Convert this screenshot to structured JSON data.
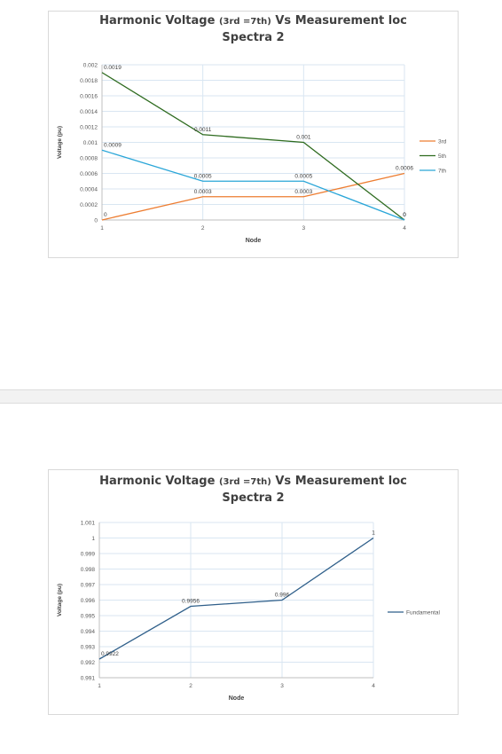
{
  "charts": [
    {
      "title_main": "Harmonic Voltage ",
      "title_paren": "(3rd =7th)",
      "title_tail": " Vs Measurement loc",
      "title_line2": "Spectra 2",
      "xlabel": "Node",
      "ylabel": "Voltage (pu)"
    },
    {
      "title_main": "Harmonic Voltage ",
      "title_paren": "(3rd =7th)",
      "title_tail": " Vs Measurement loc",
      "title_line2": "Spectra 2",
      "xlabel": "Node",
      "ylabel": "Voltage (pu)"
    }
  ],
  "chart_data": [
    {
      "type": "line",
      "title": "Harmonic Voltage (3rd =7th) Vs Measurement loc Spectra 2",
      "xlabel": "Node",
      "ylabel": "Voltage (pu)",
      "x": [
        1,
        2,
        3,
        4
      ],
      "x_tick_labels": [
        "1",
        "2",
        "3",
        "4"
      ],
      "ylim": [
        0,
        0.002
      ],
      "y_ticks": [
        0,
        0.0002,
        0.0004,
        0.0006,
        0.0008,
        0.001,
        0.0012,
        0.0014,
        0.0016,
        0.0018,
        0.002
      ],
      "y_tick_labels": [
        "0",
        "0.0002",
        "0.0004",
        "0.0006",
        "0.0008",
        "0.001",
        "0.0012",
        "0.0014",
        "0.0016",
        "0.0018",
        "0.002"
      ],
      "grid": true,
      "legend_position": "right",
      "series": [
        {
          "name": "3rd",
          "color": "#ed7d31",
          "values": [
            0,
            0.0003,
            0.0003,
            0.0006
          ],
          "labels": [
            "0",
            "0.0003",
            "0.0003",
            "0.0006"
          ]
        },
        {
          "name": "5th",
          "color": "#2e6b1f",
          "values": [
            0.0019,
            0.0011,
            0.001,
            0
          ],
          "labels": [
            "0.0019",
            "0.0011",
            "0.001",
            "0"
          ]
        },
        {
          "name": "7th",
          "color": "#2aa6d8",
          "values": [
            0.0009,
            0.0005,
            0.0005,
            0
          ],
          "labels": [
            "0.0009",
            "0.0005",
            "0.0005",
            "0"
          ]
        }
      ]
    },
    {
      "type": "line",
      "title": "Harmonic Voltage (3rd =7th) Vs Measurement loc Spectra 2",
      "xlabel": "Node",
      "ylabel": "Voltage (pu)",
      "x": [
        1,
        2,
        3,
        4
      ],
      "x_tick_labels": [
        "1",
        "2",
        "3",
        "4"
      ],
      "ylim": [
        0.991,
        1.001
      ],
      "y_ticks": [
        0.991,
        0.992,
        0.993,
        0.994,
        0.995,
        0.996,
        0.997,
        0.998,
        0.999,
        1,
        1.001
      ],
      "y_tick_labels": [
        "0.991",
        "0.992",
        "0.993",
        "0.994",
        "0.995",
        "0.996",
        "0.997",
        "0.998",
        "0.999",
        "1",
        "1.001"
      ],
      "grid": true,
      "legend_position": "right",
      "series": [
        {
          "name": "Fundamental",
          "color": "#2f5f8a",
          "values": [
            0.9922,
            0.9956,
            0.996,
            1
          ],
          "labels": [
            "0.9922",
            "0.9956",
            "0.996",
            "1"
          ]
        }
      ]
    }
  ]
}
